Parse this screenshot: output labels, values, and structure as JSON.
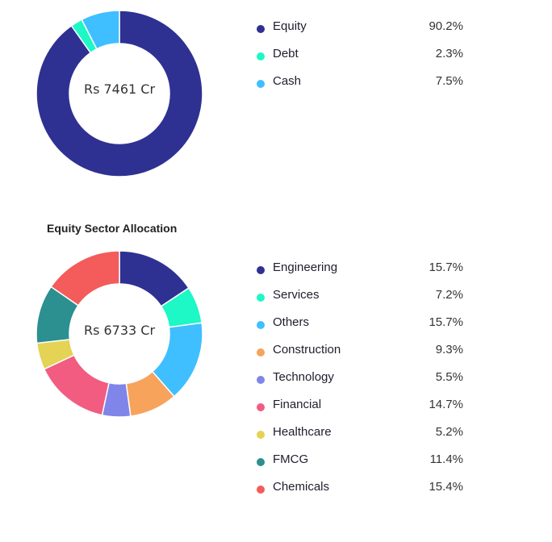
{
  "chart_data": [
    {
      "type": "pie",
      "title": "",
      "center_label": "Rs 7461 Cr",
      "categories": [
        "Equity",
        "Debt",
        "Cash"
      ],
      "values": [
        90.2,
        2.3,
        7.5
      ],
      "value_labels": [
        "90.2%",
        "2.3%",
        "7.5%"
      ],
      "colors": [
        "#2e3192",
        "#1ef7c6",
        "#3fbfff"
      ],
      "legend": "right"
    },
    {
      "type": "pie",
      "title": "Equity Sector Allocation",
      "center_label": "Rs 6733 Cr",
      "categories": [
        "Engineering",
        "Services",
        "Others",
        "Construction",
        "Technology",
        "Financial",
        "Healthcare",
        "FMCG",
        "Chemicals"
      ],
      "values": [
        15.7,
        7.2,
        15.7,
        9.3,
        5.5,
        14.7,
        5.2,
        11.4,
        15.4
      ],
      "value_labels": [
        "15.7%",
        "7.2%",
        "15.7%",
        "9.3%",
        "5.5%",
        "14.7%",
        "5.2%",
        "11.4%",
        "15.4%"
      ],
      "colors": [
        "#2e3192",
        "#1ef7c6",
        "#3fbfff",
        "#f7a35c",
        "#8085e9",
        "#f15c80",
        "#e4d354",
        "#2b908f",
        "#f45b5b"
      ],
      "legend": "right"
    }
  ]
}
